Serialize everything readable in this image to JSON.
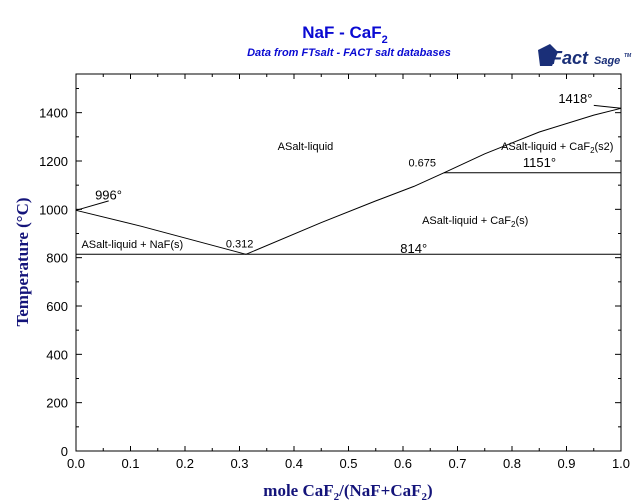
{
  "chart_data": {
    "type": "line",
    "title": "NaF - CaF",
    "title_sub": "2",
    "subtitle": "Data from FTsalt - FACT salt databases",
    "logo": {
      "text1": "Fact",
      "text2": "Sage",
      "mark": "TM"
    },
    "xlabel": {
      "pre": "mole CaF",
      "s1": "2",
      "mid": "/(NaF+CaF",
      "s2": "2",
      "post": ")"
    },
    "ylabel": "Temperature (°C)",
    "xlim": [
      0,
      1
    ],
    "ylim": [
      0,
      1560
    ],
    "xticks": [
      "0.0",
      "0.1",
      "0.2",
      "0.3",
      "0.4",
      "0.5",
      "0.6",
      "0.7",
      "0.8",
      "0.9",
      "1.0"
    ],
    "yticks": [
      "0",
      "200",
      "400",
      "600",
      "800",
      "1000",
      "1200",
      "1400"
    ],
    "grid": false,
    "series": [
      {
        "x": [
          0.0,
          0.12,
          0.312
        ],
        "y": [
          996,
          930,
          814
        ]
      },
      {
        "x": [
          0.312,
          0.45,
          0.55,
          0.62,
          0.675,
          0.75,
          0.85,
          0.95,
          1.0
        ],
        "y": [
          814,
          945,
          1035,
          1095,
          1151,
          1230,
          1320,
          1390,
          1418
        ]
      },
      {
        "x": [
          0.0,
          1.0
        ],
        "y": [
          814,
          814
        ]
      },
      {
        "x": [
          0.675,
          1.0
        ],
        "y": [
          1151,
          1151
        ]
      },
      {
        "x": [
          0.0,
          0.06
        ],
        "y": [
          996,
          1035
        ]
      },
      {
        "x": [
          0.95,
          1.0
        ],
        "y": [
          1430,
          1418
        ]
      }
    ],
    "region_labels": [
      {
        "text": "ASalt-liquid",
        "x": 0.37,
        "y": 1245
      },
      {
        "text": "ASalt-liquid + NaF(s)",
        "x": 0.01,
        "y": 840
      },
      {
        "text": "ASalt-liquid + CaF",
        "sub": "2",
        "after": "(s)",
        "x": 0.635,
        "y": 940
      },
      {
        "text": "ASalt-liquid + CaF",
        "sub": "2",
        "after": "(s2)",
        "x": 0.78,
        "y": 1245
      }
    ],
    "annotations": [
      {
        "text": "996°",
        "x": 0.035,
        "y": 1040,
        "size": "large"
      },
      {
        "text": "0.312",
        "x": 0.275,
        "y": 843,
        "size": "small"
      },
      {
        "text": "814°",
        "x": 0.595,
        "y": 820,
        "size": "large"
      },
      {
        "text": "0.675",
        "x": 0.61,
        "y": 1178,
        "size": "small"
      },
      {
        "text": "1151°",
        "x": 0.82,
        "y": 1175,
        "size": "large"
      },
      {
        "text": "1418°",
        "x": 0.885,
        "y": 1440,
        "size": "large"
      }
    ]
  }
}
